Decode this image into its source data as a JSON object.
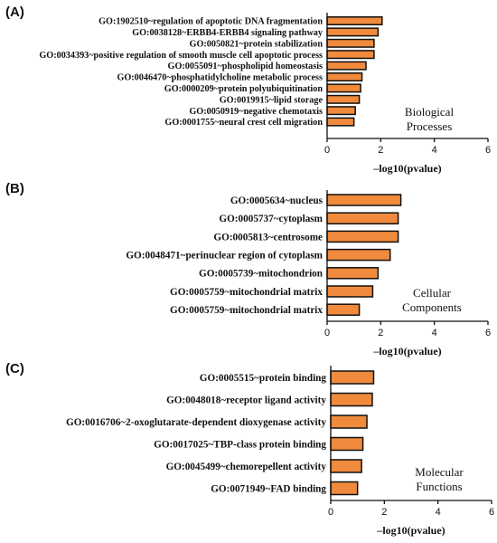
{
  "chart_data": [
    {
      "type": "bar",
      "orientation": "horizontal",
      "panel": "(A)",
      "categories": [
        "GO:1902510~regulation of apoptotic DNA fragmentation",
        "GO:0038128~ERBB4-ERBB4 signaling pathway",
        "GO:0050821~protein stabilization",
        "GO:0034393~positive regulation of smooth muscle cell apoptotic process",
        "GO:0055091~phospholipid homeostasis",
        "GO:0046470~phosphatidylcholine metabolic process",
        "GO:0000209~protein polyubiquitination",
        "GO:0019915~lipid storage",
        "GO:0050919~negative chemotaxis",
        "GO:0001755~neural crest cell migration"
      ],
      "values": [
        2.05,
        1.9,
        1.75,
        1.75,
        1.45,
        1.3,
        1.25,
        1.2,
        1.05,
        1.0
      ],
      "xlabel": "–log10(pvalue)",
      "ylabel": "",
      "xlim": [
        0,
        6
      ],
      "xticks": [
        "0",
        "2",
        "4",
        "6"
      ],
      "annotation": [
        "Biological",
        "Processes"
      ],
      "bar_color": "#f08a3c"
    },
    {
      "type": "bar",
      "orientation": "horizontal",
      "panel": "(B)",
      "categories": [
        "GO:0005634~nucleus",
        "GO:0005737~cytoplasm",
        "GO:0005813~centrosome",
        "GO:0048471~perinuclear region of cytoplasm",
        "GO:0005739~mitochondrion",
        "GO:0005759~mitochondrial matrix",
        "GO:0005759~mitochondrial matrix"
      ],
      "values": [
        2.75,
        2.65,
        2.65,
        2.35,
        1.9,
        1.7,
        1.2
      ],
      "xlabel": "–log10(pvalue)",
      "ylabel": "",
      "xlim": [
        0,
        6
      ],
      "xticks": [
        "0",
        "2",
        "4",
        "6"
      ],
      "annotation": [
        "Cellular",
        "Components"
      ],
      "bar_color": "#f08a3c"
    },
    {
      "type": "bar",
      "orientation": "horizontal",
      "panel": "(C)",
      "categories": [
        "GO:0005515~protein binding",
        "GO:0048018~receptor ligand activity",
        "GO:0016706~2-oxoglutarate-dependent dioxygenase activity",
        "GO:0017025~TBP-class protein binding",
        "GO:0045499~chemorepellent activity",
        "GO:0071949~FAD binding"
      ],
      "values": [
        1.6,
        1.55,
        1.35,
        1.2,
        1.15,
        1.0
      ],
      "xlabel": "–log10(pvalue)",
      "ylabel": "",
      "xlim": [
        0,
        6
      ],
      "xticks": [
        "0",
        "2",
        "4",
        "6"
      ],
      "annotation": [
        "Molecular",
        "Functions"
      ],
      "bar_color": "#f08a3c"
    }
  ]
}
